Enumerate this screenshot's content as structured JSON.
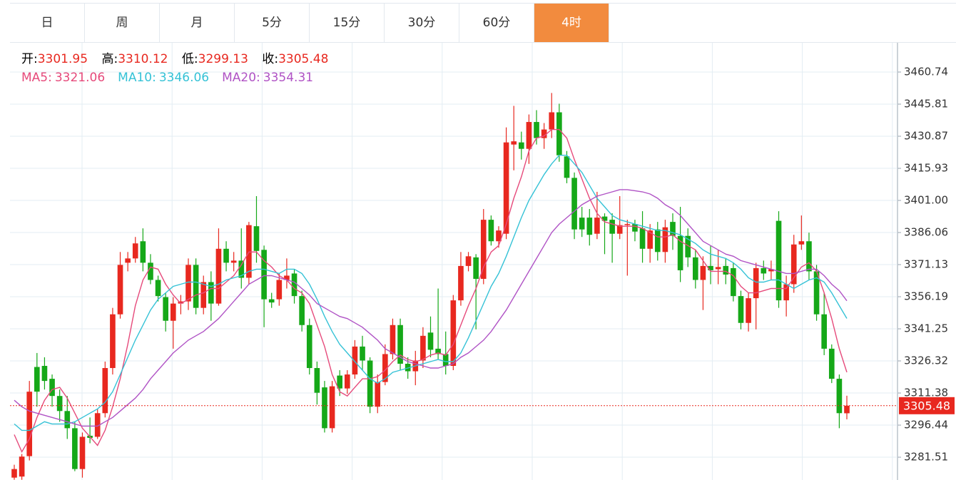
{
  "tabs": [
    "日",
    "周",
    "月",
    "5分",
    "15分",
    "30分",
    "60分",
    "4时"
  ],
  "active_tab": 7,
  "ohlc_labels": [
    "开:",
    "高:",
    "低:",
    "收:"
  ],
  "chart_data": {
    "type": "candlestick",
    "up_color": "#e8281f",
    "down_color": "#15a818",
    "ylim": [
      3270.9,
      3474.35
    ],
    "yticks": [
      3460.74,
      3445.81,
      3430.87,
      3415.93,
      {
        "value": 3401,
        "label": "3401.00"
      },
      3386.06,
      3371.13,
      3356.19,
      3341.25,
      3326.32,
      3311.38,
      3296.44,
      3281.51
    ],
    "grid": true,
    "candles": {
      "open": [
        3272,
        3272.5,
        3282,
        3323.5,
        3324,
        3318,
        3310,
        3303,
        3295,
        3276,
        3291.5,
        3291,
        3302,
        3323,
        3348,
        3372,
        3374,
        3382,
        3372,
        3364,
        3356,
        3345,
        3353,
        3354,
        3371,
        3351,
        3363,
        3353,
        3378.5,
        3372,
        3373,
        3365,
        3389,
        3378,
        3355,
        3355,
        3364,
        3367,
        3356.5,
        3343,
        3323,
        3314,
        3295,
        3319.5,
        3313.5,
        3320,
        3333,
        3326.5,
        3305,
        3316.5,
        3329.5,
        3343,
        3325,
        3321.5,
        3326.5,
        3339.5,
        3332,
        3329.5,
        3324,
        3354.5,
        3370.5,
        3374.5,
        3364.5,
        3392,
        3382,
        3385.5,
        3427,
        3428,
        3425,
        3437.5,
        3430,
        3434,
        3442,
        3421.5,
        3411.5,
        3393,
        3393,
        3385.5,
        3393.5,
        3392,
        3385.5,
        3389.5,
        3390,
        3388,
        3378.5,
        3387.5,
        3377,
        3391,
        3384.5,
        3384.5,
        3374.5,
        3364,
        3370.5,
        3369,
        3370.5,
        3369.5,
        3356.5,
        3344,
        3355.5,
        3369.5,
        3368,
        3391.5,
        3354.5,
        3362,
        3380.5,
        3382,
        3368,
        3348,
        3332,
        3318,
        3301.95
      ],
      "high": [
        3278,
        3283,
        3317,
        3330,
        3328,
        3320,
        3313,
        3310,
        3298,
        3293,
        3300,
        3304,
        3326,
        3351,
        3377,
        3377,
        3384,
        3388,
        3376,
        3366,
        3358,
        3356,
        3357,
        3374,
        3374,
        3366,
        3368,
        3388,
        3382,
        3377,
        3388,
        3391,
        3403,
        3380,
        3358,
        3367,
        3374,
        3369,
        3359,
        3346,
        3326,
        3317,
        3317,
        3322,
        3322,
        3336,
        3338,
        3328,
        3320,
        3334,
        3346,
        3346,
        3328,
        3331,
        3342,
        3347,
        3360,
        3340,
        3357,
        3377,
        3377,
        3376,
        3397,
        3394,
        3389,
        3435,
        3445,
        3433,
        3441,
        3443,
        3437,
        3451,
        3446,
        3424,
        3414,
        3398,
        3397,
        3405,
        3395,
        3395,
        3403,
        3392,
        3392,
        3396,
        3390,
        3391,
        3392,
        3395,
        3398,
        3388,
        3378,
        3375,
        3380,
        3378,
        3374,
        3372,
        3359,
        3358,
        3372,
        3373,
        3373,
        3396,
        3366,
        3385,
        3394,
        3386,
        3371,
        3358,
        3334,
        3320,
        3310.12
      ],
      "low": [
        3271,
        3271,
        3280,
        3305,
        3313,
        3305,
        3298,
        3290,
        3275,
        3272,
        3288,
        3290,
        3300,
        3320,
        3346,
        3368,
        3372,
        3368,
        3362,
        3354,
        3340,
        3332,
        3348,
        3350,
        3348,
        3348,
        3345,
        3352,
        3368,
        3368,
        3360,
        3362,
        3372,
        3342,
        3351,
        3352,
        3360,
        3353,
        3340,
        3320,
        3306,
        3293,
        3293,
        3310,
        3311,
        3318,
        3322,
        3302,
        3302,
        3315,
        3327,
        3322,
        3318,
        3315,
        3323,
        3328,
        3327,
        3320,
        3322,
        3352,
        3368,
        3341,
        3362,
        3380,
        3379,
        3383,
        3415,
        3420,
        3418,
        3427,
        3425,
        3430,
        3419,
        3409,
        3383,
        3384,
        3380,
        3383,
        3376,
        3372,
        3383,
        3366,
        3382,
        3372,
        3372,
        3373,
        3372,
        3378,
        3363,
        3370,
        3360,
        3350,
        3362,
        3362,
        3362,
        3354,
        3341,
        3340,
        3341,
        3364,
        3364,
        3351,
        3347,
        3358,
        3378,
        3364,
        3345,
        3329,
        3316,
        3295,
        3299.13
      ],
      "close": [
        3276,
        3281.8,
        3312,
        3312,
        3317,
        3310,
        3303,
        3295,
        3276,
        3291,
        3290.5,
        3302,
        3323,
        3348,
        3371,
        3374,
        3381,
        3372,
        3364,
        3356.5,
        3345,
        3353,
        3354,
        3371,
        3351,
        3363,
        3353,
        3378.5,
        3372,
        3373,
        3365,
        3389.5,
        3377.5,
        3355,
        3353.5,
        3364,
        3366,
        3356.5,
        3343,
        3323,
        3311.5,
        3295,
        3314.5,
        3313.5,
        3320,
        3333,
        3326.5,
        3305,
        3316.5,
        3329.5,
        3343,
        3325,
        3321.5,
        3326.5,
        3338,
        3331.5,
        3329.5,
        3324,
        3354.5,
        3370.5,
        3375,
        3364.5,
        3392,
        3382,
        3387,
        3428,
        3428.5,
        3425,
        3437.5,
        3430,
        3434,
        3442,
        3422,
        3411.5,
        3387.5,
        3387.5,
        3385,
        3393,
        3391.5,
        3385.5,
        3389.5,
        3390,
        3386.5,
        3378.5,
        3387,
        3377,
        3388.5,
        3384.5,
        3368.5,
        3374.5,
        3364,
        3370.5,
        3368.5,
        3370,
        3366.5,
        3356.5,
        3344,
        3355.5,
        3369.5,
        3367,
        3369,
        3354.5,
        3362,
        3380.5,
        3382,
        3368,
        3348,
        3332,
        3318,
        3302,
        3305.48
      ]
    },
    "series": [
      {
        "name": "MA5:",
        "color": "#e64a7b",
        "values": [
          3292,
          3284,
          3290,
          3300,
          3308,
          3313,
          3314,
          3309,
          3302,
          3295,
          3291,
          3287,
          3294,
          3305,
          3318,
          3334,
          3352,
          3364,
          3370,
          3369,
          3362,
          3357,
          3353,
          3355,
          3357,
          3358,
          3360,
          3360,
          3363,
          3366,
          3371,
          3377,
          3377,
          3373,
          3370,
          3366,
          3364,
          3360,
          3358,
          3353,
          3343,
          3333,
          3320,
          3312,
          3310,
          3314,
          3318,
          3318,
          3319,
          3322,
          3326,
          3329,
          3327,
          3326,
          3327,
          3329,
          3330,
          3329,
          3334,
          3343,
          3352,
          3360,
          3370,
          3377,
          3380,
          3390,
          3402,
          3412,
          3424,
          3430,
          3431,
          3434,
          3434,
          3430,
          3420,
          3411,
          3402,
          3395,
          3391,
          3390,
          3389,
          3389,
          3389,
          3388,
          3386,
          3384,
          3384,
          3385,
          3382,
          3380,
          3378,
          3373,
          3368,
          3368,
          3368,
          3366,
          3361,
          3358,
          3358,
          3359,
          3360,
          3360,
          3360,
          3365,
          3370,
          3372,
          3368,
          3358,
          3346,
          3332,
          3321.06
        ]
      },
      {
        "name": "MA10:",
        "color": "#35c2d6",
        "values": [
          3297,
          3294,
          3294,
          3296,
          3298,
          3297,
          3297,
          3297,
          3298,
          3300,
          3302,
          3304,
          3307,
          3312,
          3320,
          3328,
          3336,
          3343,
          3350,
          3355,
          3358,
          3361,
          3362,
          3363,
          3363,
          3362,
          3361,
          3362,
          3364,
          3365,
          3366,
          3368,
          3369,
          3369,
          3368,
          3367,
          3369,
          3369,
          3367,
          3362,
          3355,
          3347,
          3340,
          3334,
          3330,
          3326,
          3322,
          3318,
          3316,
          3318,
          3321,
          3322,
          3323,
          3324,
          3325,
          3326,
          3327,
          3326,
          3326,
          3330,
          3337,
          3345,
          3353,
          3361,
          3367,
          3375,
          3384,
          3393,
          3401,
          3407,
          3413,
          3418,
          3422,
          3422,
          3418,
          3414,
          3408,
          3402,
          3398,
          3394,
          3392,
          3391,
          3390,
          3389,
          3388,
          3387,
          3387,
          3386,
          3385,
          3383,
          3381,
          3378,
          3376,
          3375,
          3374,
          3372,
          3369,
          3365,
          3363,
          3363,
          3364,
          3364,
          3362,
          3360,
          3362,
          3364,
          3365,
          3363,
          3358,
          3352,
          3346.06
        ]
      },
      {
        "name": "MA20:",
        "color": "#b053c5",
        "values": [
          3308,
          3305,
          3303,
          3302,
          3301,
          3300,
          3299,
          3298,
          3297,
          3296,
          3296,
          3296,
          3298,
          3300,
          3303,
          3306,
          3309,
          3313,
          3318,
          3322,
          3326,
          3330,
          3333,
          3336,
          3338,
          3340,
          3343,
          3346,
          3350,
          3354,
          3358,
          3362,
          3364,
          3366,
          3366,
          3365,
          3364,
          3363,
          3360,
          3357,
          3353,
          3351,
          3349,
          3347,
          3346,
          3344,
          3342,
          3339,
          3336,
          3332,
          3330,
          3328,
          3326,
          3325,
          3324,
          3323,
          3323,
          3324,
          3325,
          3328,
          3330,
          3333,
          3336,
          3340,
          3345,
          3350,
          3356,
          3362,
          3368,
          3374,
          3380,
          3386,
          3390,
          3393,
          3396,
          3399,
          3401,
          3403,
          3404,
          3405,
          3406,
          3406,
          3405.5,
          3405,
          3404,
          3402,
          3399,
          3397,
          3394,
          3390,
          3386,
          3382,
          3380,
          3378,
          3376,
          3375,
          3373,
          3372,
          3371,
          3370,
          3369,
          3368,
          3367,
          3367,
          3368,
          3369,
          3369,
          3366,
          3362,
          3359,
          3354.31
        ]
      }
    ]
  }
}
